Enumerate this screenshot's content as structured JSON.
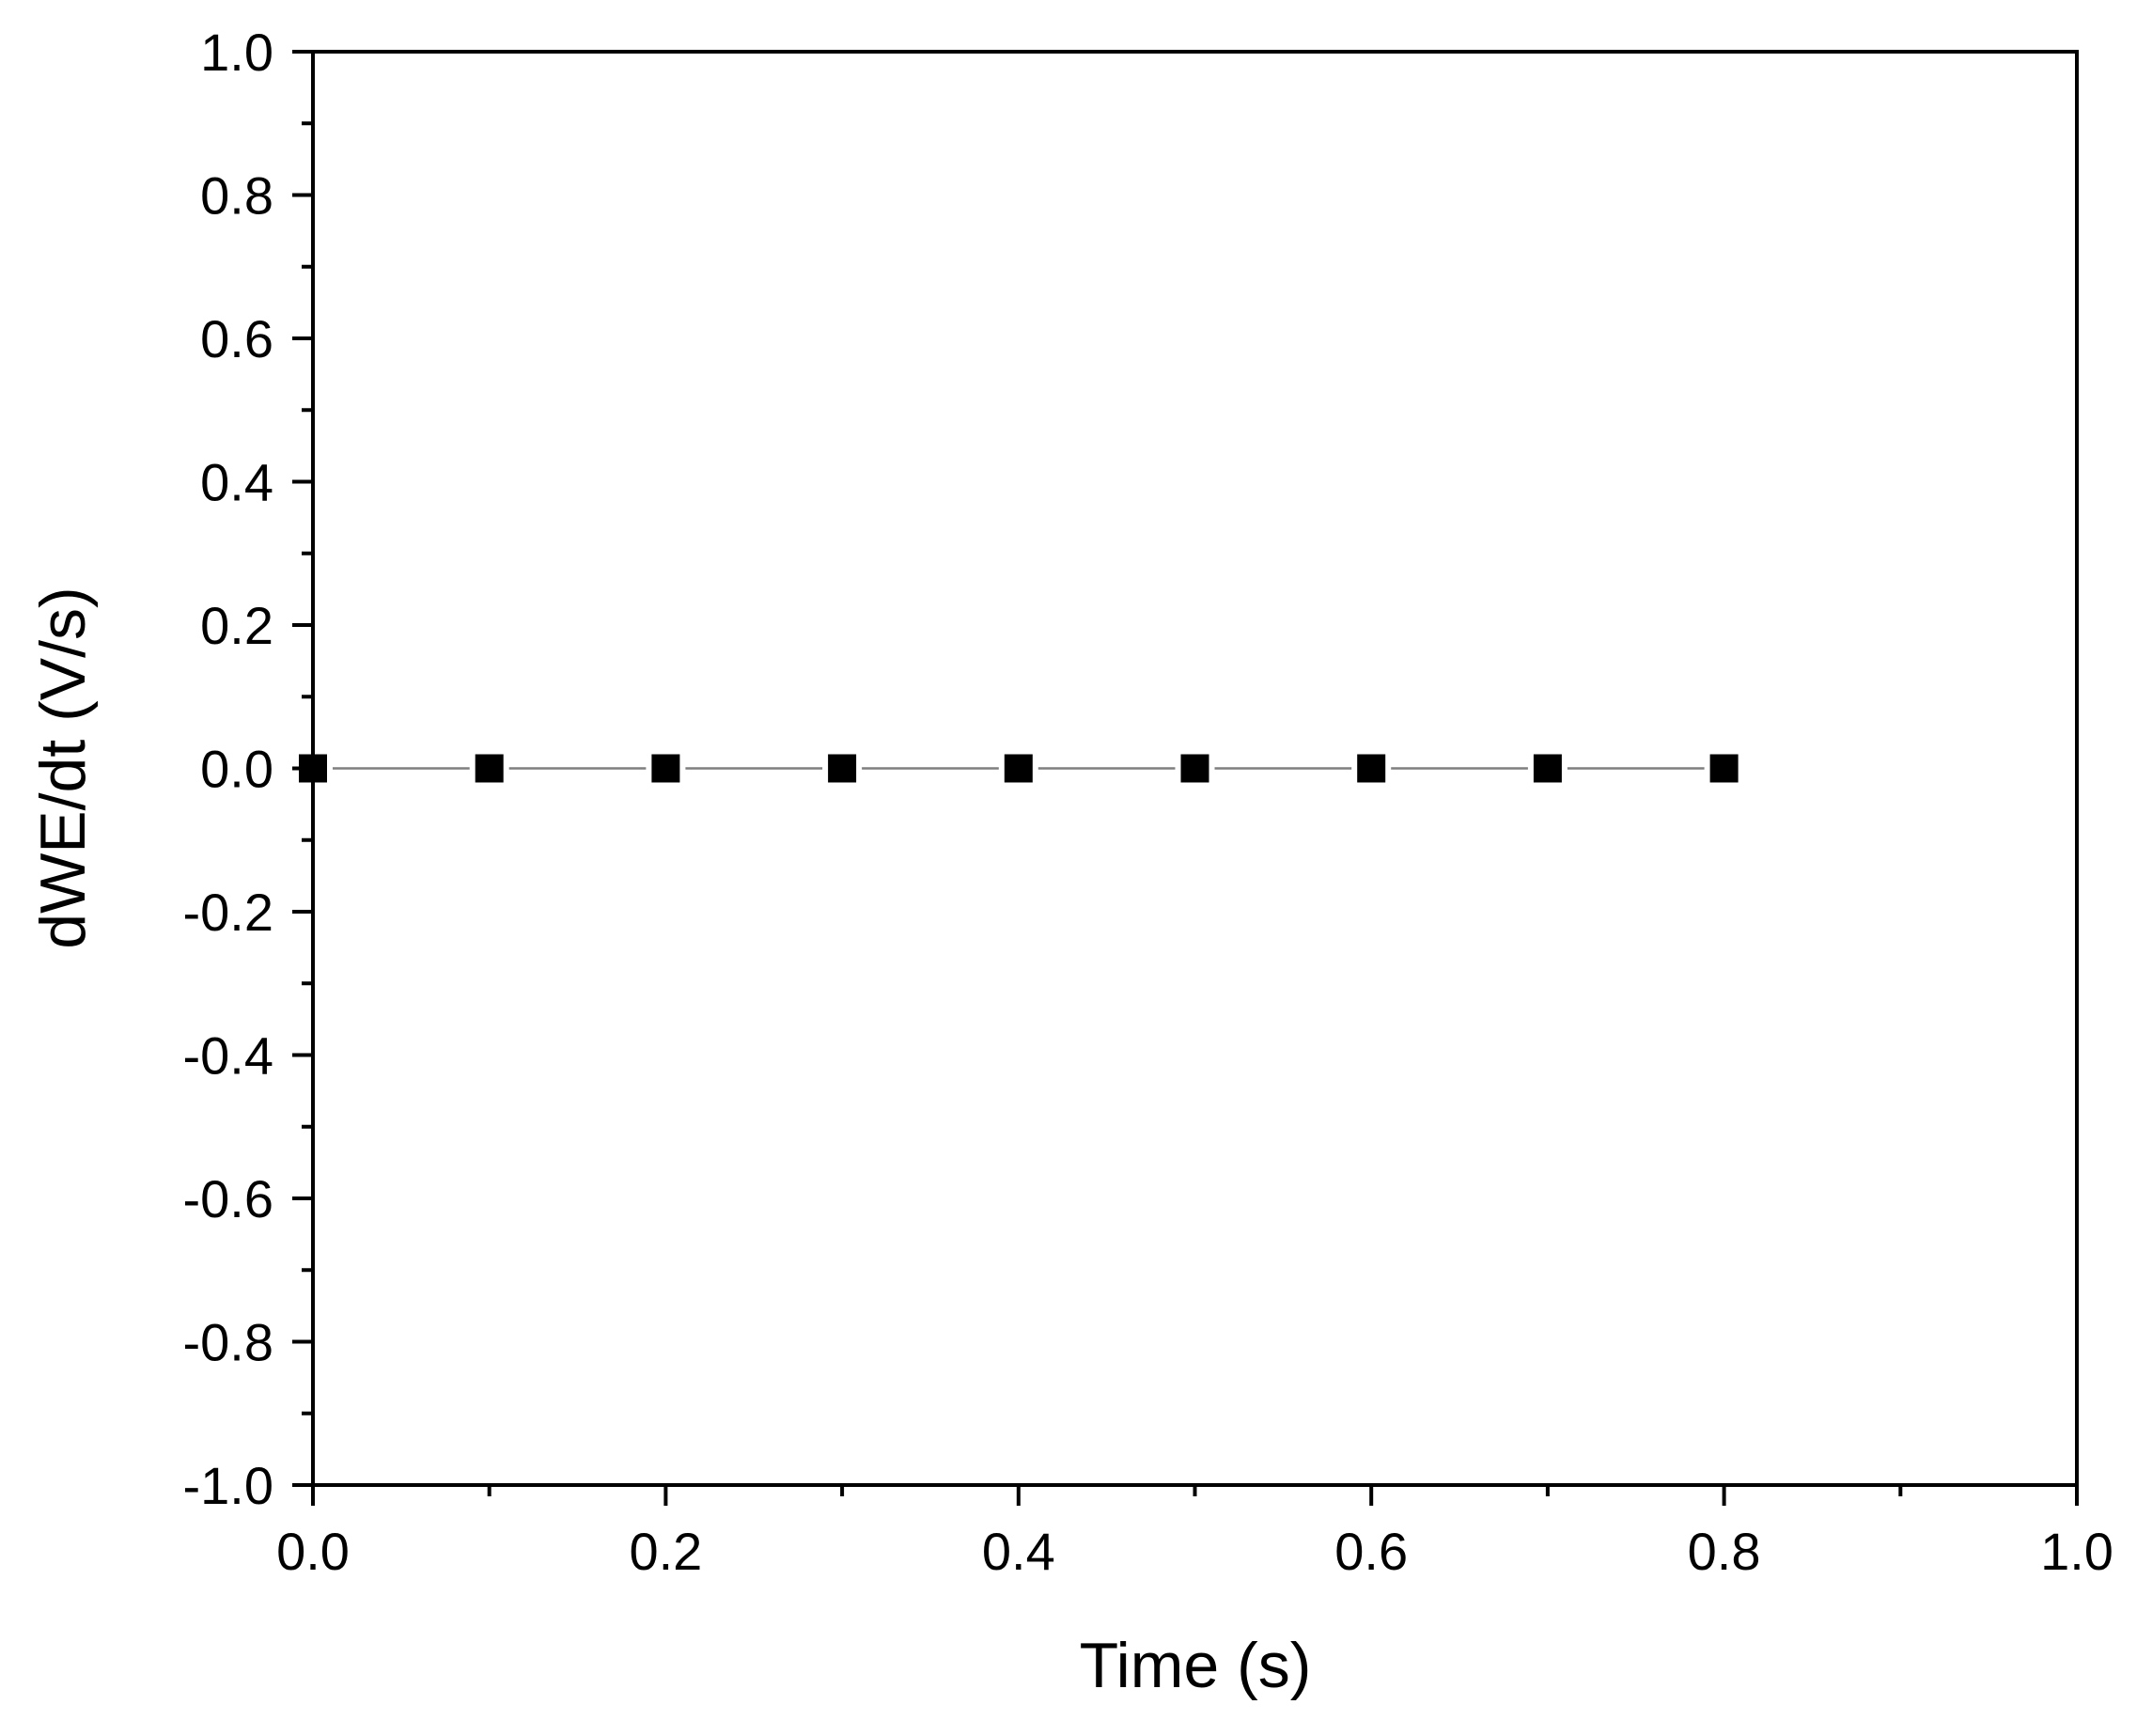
{
  "chart_data": {
    "type": "line",
    "title": "",
    "xlabel": "Time (s)",
    "ylabel": "dWE/dt (V/s)",
    "xlim": [
      0.0,
      1.0
    ],
    "ylim": [
      -1.0,
      1.0
    ],
    "x_ticks": [
      "0.0",
      "0.2",
      "0.4",
      "0.6",
      "0.8",
      "1.0"
    ],
    "x_tick_values": [
      0.0,
      0.2,
      0.4,
      0.6,
      0.8,
      1.0
    ],
    "y_ticks": [
      "1.0",
      "0.8",
      "0.6",
      "0.4",
      "0.2",
      "0.0",
      "-0.2",
      "-0.4",
      "-0.6",
      "-0.8",
      "-1.0"
    ],
    "y_tick_values": [
      1.0,
      0.8,
      0.6,
      0.4,
      0.2,
      0.0,
      -0.2,
      -0.4,
      -0.6,
      -0.8,
      -1.0
    ],
    "grid": false,
    "legend": "none",
    "marker": "square",
    "colors": {
      "line": "#7f7f7f",
      "marker": "#000000",
      "axis": "#000000"
    },
    "series": [
      {
        "x": [
          0.0,
          0.1,
          0.2,
          0.3,
          0.4,
          0.5,
          0.6,
          0.7,
          0.8
        ],
        "y": [
          0.0,
          0.0,
          0.0,
          0.0,
          0.0,
          0.0,
          0.0,
          0.0,
          0.0
        ]
      }
    ]
  }
}
